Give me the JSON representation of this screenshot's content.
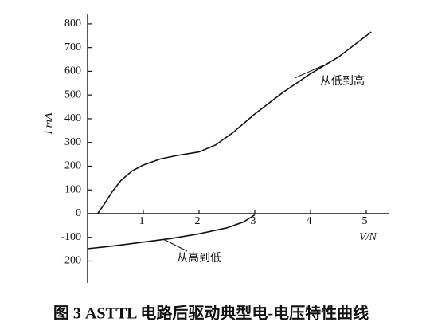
{
  "chart_data": {
    "type": "line",
    "caption": "图 3  ASTTL 电路后驱动典型电-电压特性曲线",
    "xlabel": "V/N",
    "ylabel": "I mA",
    "xlim": [
      0,
      5.4
    ],
    "ylim": [
      -290,
      840
    ],
    "xticks": [
      1,
      2,
      3,
      4,
      5
    ],
    "yticks": [
      -200,
      -100,
      0,
      100,
      200,
      300,
      400,
      500,
      600,
      700,
      800
    ],
    "series": [
      {
        "name": "从低到高",
        "color": "#111111",
        "x": [
          0.18,
          0.3,
          0.45,
          0.6,
          0.8,
          1.0,
          1.3,
          1.6,
          2.0,
          2.3,
          2.6,
          3.0,
          3.5,
          4.0,
          4.5,
          5.09
        ],
        "values": [
          0,
          40,
          95,
          140,
          180,
          205,
          230,
          245,
          260,
          290,
          340,
          420,
          510,
          590,
          660,
          766
        ]
      },
      {
        "name": "从高到低",
        "color": "#111111",
        "x": [
          0,
          0.5,
          1.0,
          1.5,
          2.0,
          2.5,
          2.8,
          3.0
        ],
        "values": [
          -148,
          -135,
          -120,
          -105,
          -85,
          -60,
          -35,
          -5
        ]
      }
    ]
  }
}
